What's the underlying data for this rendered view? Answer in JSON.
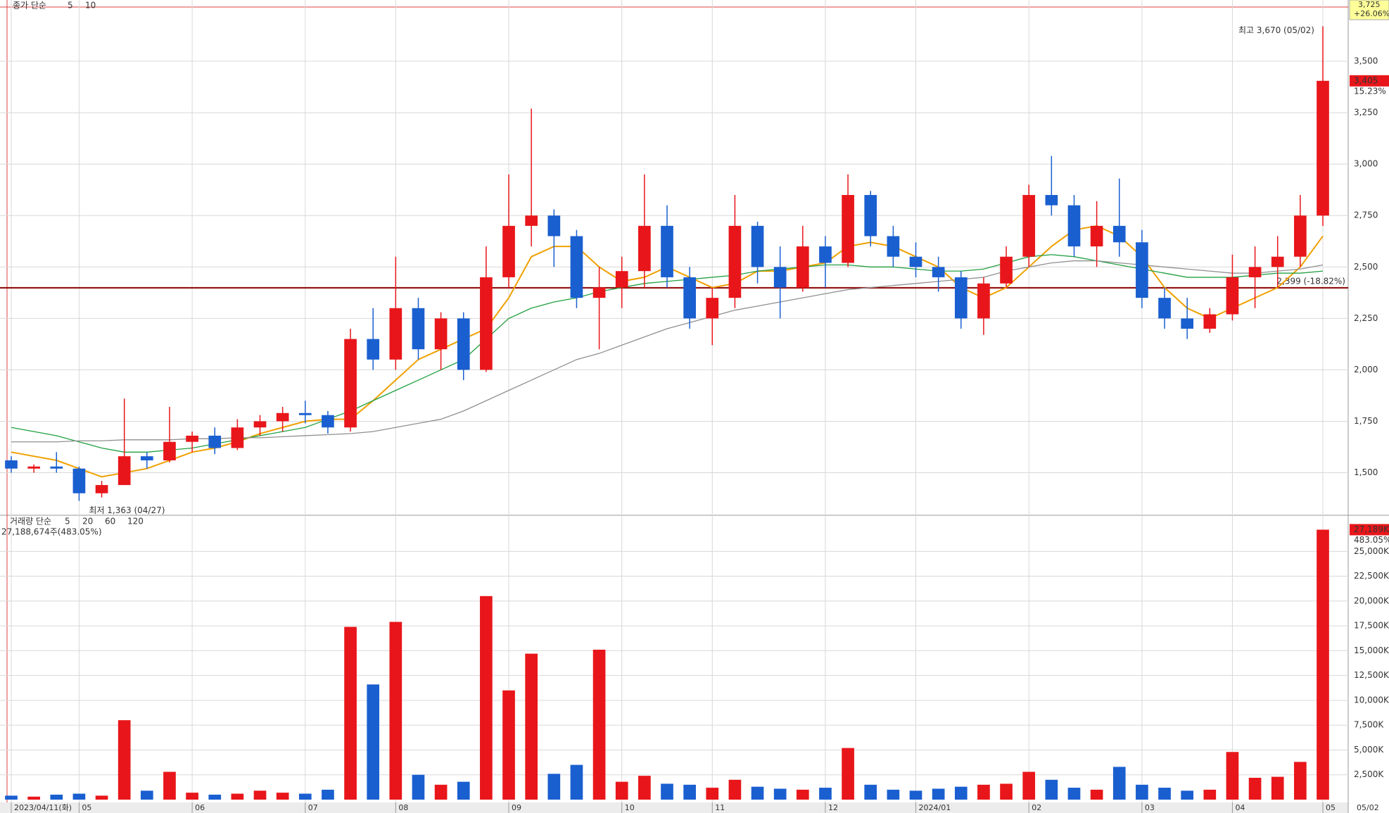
{
  "chart_data": [
    {
      "type": "candlestick",
      "legend_title": "종가 단순",
      "legend_items": [
        {
          "name": "5",
          "color": "#e020c0"
        },
        {
          "name": "10",
          "color": "#2040d0"
        }
      ],
      "categories": [
        "2023/04/11(화)",
        null,
        null,
        "05",
        null,
        null,
        null,
        null,
        "06",
        null,
        null,
        null,
        null,
        "07",
        null,
        null,
        null,
        "08",
        null,
        null,
        null,
        null,
        "09",
        null,
        null,
        null,
        null,
        "10",
        null,
        null,
        null,
        "11",
        null,
        null,
        null,
        null,
        "12",
        null,
        null,
        null,
        "2024/01",
        null,
        null,
        null,
        null,
        "02",
        null,
        null,
        null,
        null,
        "03",
        null,
        null,
        null,
        "04",
        null,
        null,
        null,
        "05"
      ],
      "open": [
        1560,
        1520,
        1530,
        1520,
        1400,
        1440,
        1580,
        1560,
        1650,
        1680,
        1620,
        1720,
        1750,
        1790,
        1780,
        1720,
        2150,
        2050,
        2300,
        2100,
        2250,
        2000,
        2450,
        2700,
        2750,
        2650,
        2350,
        2400,
        2480,
        2700,
        2450,
        2250,
        2350,
        2700,
        2500,
        2400,
        2600,
        2520,
        2850,
        2650,
        2550,
        2500,
        2450,
        2250,
        2420,
        2550,
        2850,
        2800,
        2600,
        2700,
        2620,
        2350,
        2250,
        2200,
        2270,
        2450,
        2500,
        2550,
        2750
      ],
      "high": [
        1580,
        1540,
        1600,
        1530,
        1460,
        1860,
        1600,
        1820,
        1700,
        1720,
        1760,
        1780,
        1820,
        1850,
        1800,
        2200,
        2300,
        2550,
        2350,
        2280,
        2280,
        2600,
        2950,
        3270,
        2780,
        2680,
        2500,
        2550,
        2950,
        2800,
        2500,
        2400,
        2850,
        2720,
        2600,
        2700,
        2650,
        2950,
        2870,
        2700,
        2620,
        2550,
        2480,
        2450,
        2600,
        2900,
        3040,
        2850,
        2820,
        2930,
        2680,
        2400,
        2350,
        2300,
        2560,
        2600,
        2650,
        2850,
        3670
      ],
      "low": [
        1500,
        1500,
        1500,
        1363,
        1380,
        1440,
        1520,
        1550,
        1600,
        1590,
        1610,
        1680,
        1700,
        1740,
        1690,
        1700,
        2000,
        2000,
        2050,
        2000,
        1950,
        1990,
        2400,
        2600,
        2500,
        2300,
        2100,
        2300,
        2400,
        2400,
        2200,
        2120,
        2300,
        2420,
        2250,
        2380,
        2400,
        2500,
        2600,
        2500,
        2450,
        2380,
        2200,
        2170,
        2400,
        2500,
        2750,
        2550,
        2500,
        2550,
        2300,
        2200,
        2150,
        2180,
        2240,
        2300,
        2400,
        2500,
        2700
      ],
      "close": [
        1520,
        1530,
        1520,
        1400,
        1440,
        1580,
        1560,
        1650,
        1680,
        1620,
        1720,
        1750,
        1790,
        1780,
        1720,
        2150,
        2050,
        2300,
        2100,
        2250,
        2000,
        2450,
        2700,
        2750,
        2650,
        2350,
        2400,
        2480,
        2700,
        2450,
        2250,
        2350,
        2700,
        2500,
        2400,
        2600,
        2520,
        2850,
        2650,
        2550,
        2500,
        2450,
        2250,
        2420,
        2550,
        2850,
        2800,
        2600,
        2700,
        2620,
        2350,
        2250,
        2200,
        2270,
        2450,
        2500,
        2550,
        2750,
        3405
      ],
      "up_color": "#e8161a",
      "down_color": "#1a5fd0",
      "series": [
        {
          "name": "20",
          "color": "#f0a000",
          "values": [
            1600,
            1580,
            1560,
            1520,
            1480,
            1500,
            1520,
            1560,
            1600,
            1620,
            1650,
            1690,
            1720,
            1750,
            1760,
            1760,
            1850,
            1950,
            2050,
            2100,
            2150,
            2200,
            2350,
            2550,
            2600,
            2600,
            2500,
            2430,
            2450,
            2500,
            2450,
            2400,
            2420,
            2480,
            2480,
            2500,
            2520,
            2600,
            2620,
            2600,
            2550,
            2500,
            2400,
            2350,
            2400,
            2500,
            2600,
            2680,
            2700,
            2650,
            2550,
            2400,
            2300,
            2250,
            2300,
            2350,
            2400,
            2500,
            2650
          ]
        },
        {
          "name": "60",
          "color": "#20a040",
          "values": [
            1720,
            1700,
            1680,
            1650,
            1620,
            1600,
            1600,
            1610,
            1620,
            1640,
            1660,
            1680,
            1700,
            1720,
            1760,
            1800,
            1850,
            1900,
            1950,
            2000,
            2050,
            2150,
            2250,
            2300,
            2330,
            2350,
            2380,
            2400,
            2420,
            2430,
            2440,
            2450,
            2460,
            2480,
            2490,
            2500,
            2510,
            2510,
            2500,
            2500,
            2490,
            2480,
            2480,
            2490,
            2520,
            2550,
            2560,
            2550,
            2530,
            2510,
            2490,
            2470,
            2450,
            2450,
            2450,
            2460,
            2470,
            2470,
            2480
          ]
        },
        {
          "name": "120",
          "color": "#909090",
          "values": [
            1650,
            1650,
            1650,
            1655,
            1655,
            1660,
            1660,
            1660,
            1665,
            1665,
            1670,
            1670,
            1675,
            1680,
            1685,
            1690,
            1700,
            1720,
            1740,
            1760,
            1800,
            1850,
            1900,
            1950,
            2000,
            2050,
            2080,
            2120,
            2160,
            2200,
            2230,
            2260,
            2290,
            2310,
            2330,
            2350,
            2370,
            2390,
            2400,
            2410,
            2420,
            2430,
            2440,
            2450,
            2480,
            2500,
            2520,
            2530,
            2530,
            2520,
            2510,
            2500,
            2490,
            2480,
            2470,
            2470,
            2480,
            2490,
            2510
          ]
        }
      ],
      "ylim": [
        1300,
        3750
      ],
      "yticks": [
        {
          "value": 1500,
          "label": "1,500"
        },
        {
          "value": 1750,
          "label": "1,750"
        },
        {
          "value": 2000,
          "label": "2,000"
        },
        {
          "value": 2250,
          "label": "2,250"
        },
        {
          "value": 2500,
          "label": "2,500"
        },
        {
          "value": 2750,
          "label": "2,750"
        },
        {
          "value": 3000,
          "label": "3,000"
        },
        {
          "value": 3250,
          "label": "3,250"
        },
        {
          "value": 3500,
          "label": "3,500"
        }
      ],
      "hline": {
        "value": 2399,
        "label": "2,399 (-18.82%)",
        "color": "#8b0000"
      },
      "high_note": "최고 3,670 (05/02)",
      "low_note": "최저 1,363 (04/27)",
      "last_price": {
        "value": 3405,
        "label": "3,405",
        "change": "15.23%"
      },
      "top_price": {
        "label": "3,725",
        "change": "+26.06%"
      },
      "end_date": "05/02",
      "grid": true
    },
    {
      "type": "volume",
      "legend_title": "거래량 단순",
      "legend_items": [
        {
          "name": "5",
          "color": "#e020c0"
        },
        {
          "name": "20",
          "color": "#f0a000"
        },
        {
          "name": "60",
          "color": "#20a040"
        },
        {
          "name": "120",
          "color": "#909090"
        }
      ],
      "total_label": "27,188,674주(483.05%)",
      "values": [
        400,
        300,
        500,
        600,
        400,
        8000,
        900,
        2800,
        700,
        500,
        600,
        900,
        700,
        600,
        1000,
        17400,
        11600,
        17900,
        2500,
        1500,
        1800,
        20500,
        11000,
        14700,
        2600,
        3500,
        15100,
        1800,
        2400,
        1600,
        1500,
        1200,
        2000,
        1300,
        1100,
        1000,
        1200,
        5200,
        1500,
        1000,
        900,
        1100,
        1300,
        1500,
        1600,
        2800,
        2000,
        1200,
        1000,
        3300,
        1500,
        1200,
        900,
        1000,
        4800,
        2200,
        2300,
        3800,
        27189
      ],
      "value_labels": [
        null,
        null,
        null,
        null,
        null,
        null,
        null,
        null,
        null,
        null,
        null,
        null,
        null,
        null,
        null,
        null,
        null,
        null,
        null,
        null,
        null,
        null,
        null,
        null,
        null,
        null,
        null,
        null,
        null,
        null,
        null,
        null,
        null,
        null,
        null,
        null,
        null,
        null,
        null,
        null,
        null,
        null,
        null,
        null,
        null,
        null,
        null,
        null,
        null,
        null,
        null,
        null,
        null,
        null,
        null,
        null,
        null,
        null,
        "27,189K"
      ],
      "last_change": "483.05%",
      "ylim": [
        0,
        28570
      ],
      "yticks": [
        {
          "value": 2500,
          "label": "2,500K"
        },
        {
          "value": 5000,
          "label": "5,000K"
        },
        {
          "value": 7500,
          "label": "7,500K"
        },
        {
          "value": 10000,
          "label": "10,000K"
        },
        {
          "value": 12500,
          "label": "12,500K"
        },
        {
          "value": 15000,
          "label": "15,000K"
        },
        {
          "value": 17500,
          "label": "17,500K"
        },
        {
          "value": 20000,
          "label": "20,000K"
        },
        {
          "value": 22500,
          "label": "22,500K"
        },
        {
          "value": 25000,
          "label": "25,000K"
        }
      ],
      "grid": true
    }
  ]
}
